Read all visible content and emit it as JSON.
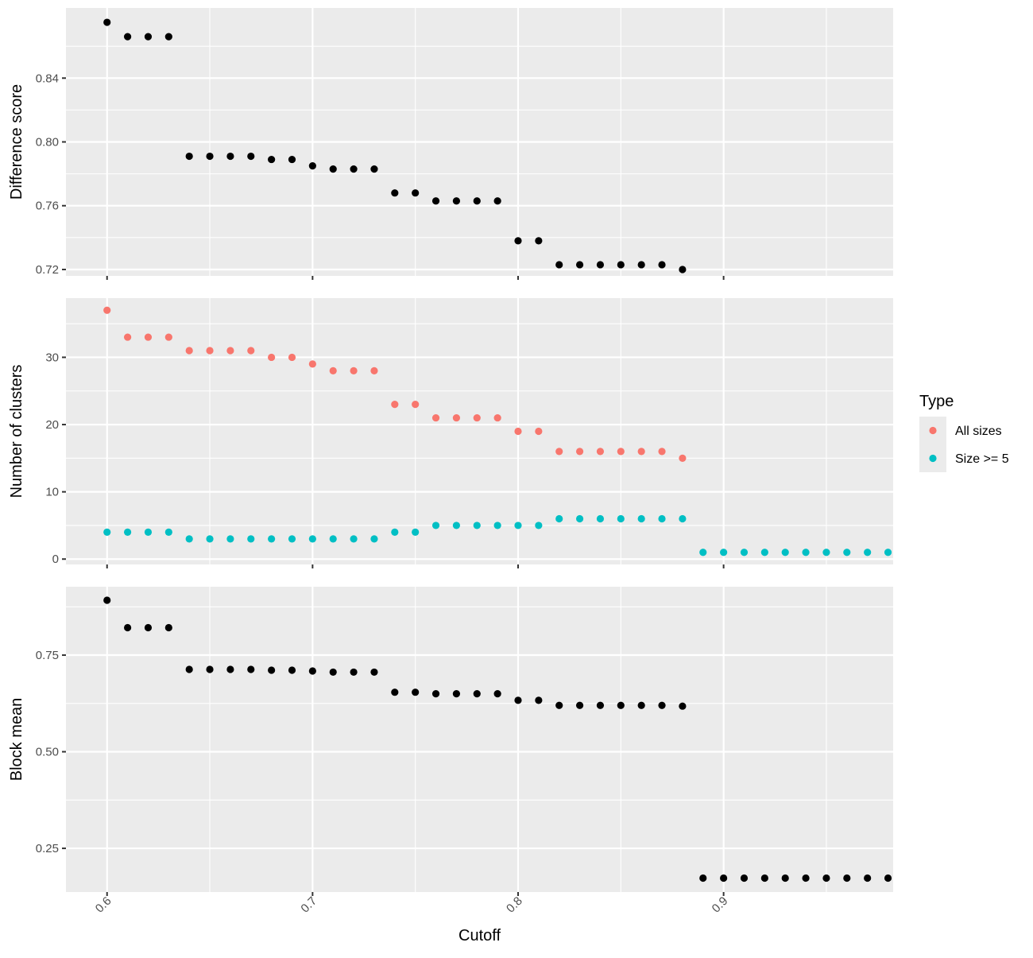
{
  "chart_data": [
    {
      "type": "scatter",
      "ylabel": "Difference score",
      "xlabel": "",
      "xlim": [
        0.58,
        0.9825
      ],
      "ylim": [
        0.716,
        0.884
      ],
      "y_ticks": [
        0.72,
        0.76,
        0.8,
        0.84
      ],
      "y_tick_labels": [
        "0.72",
        "0.76",
        "0.80",
        "0.84"
      ],
      "grid": true,
      "series": [
        {
          "color": "#000000",
          "x": [
            0.6,
            0.61,
            0.62,
            0.63,
            0.64,
            0.65,
            0.66,
            0.67,
            0.68,
            0.69,
            0.7,
            0.71,
            0.72,
            0.73,
            0.74,
            0.75,
            0.76,
            0.77,
            0.78,
            0.79,
            0.8,
            0.81,
            0.82,
            0.83,
            0.84,
            0.85,
            0.86,
            0.87,
            0.88
          ],
          "y": [
            0.875,
            0.866,
            0.866,
            0.866,
            0.791,
            0.791,
            0.791,
            0.791,
            0.789,
            0.789,
            0.785,
            0.783,
            0.783,
            0.783,
            0.768,
            0.768,
            0.763,
            0.763,
            0.763,
            0.763,
            0.738,
            0.738,
            0.723,
            0.723,
            0.723,
            0.723,
            0.723,
            0.723,
            0.72
          ]
        }
      ]
    },
    {
      "type": "scatter",
      "ylabel": "Number of clusters",
      "xlabel": "",
      "xlim": [
        0.58,
        0.9825
      ],
      "ylim": [
        -0.8,
        38.8
      ],
      "y_ticks": [
        0,
        10,
        20,
        30
      ],
      "y_tick_labels": [
        "0",
        "10",
        "20",
        "30"
      ],
      "grid": true,
      "legend": {
        "title": "Type",
        "placement": "right"
      },
      "series": [
        {
          "name": "All sizes",
          "color": "#f8766d",
          "x": [
            0.6,
            0.61,
            0.62,
            0.63,
            0.64,
            0.65,
            0.66,
            0.67,
            0.68,
            0.69,
            0.7,
            0.71,
            0.72,
            0.73,
            0.74,
            0.75,
            0.76,
            0.77,
            0.78,
            0.79,
            0.8,
            0.81,
            0.82,
            0.83,
            0.84,
            0.85,
            0.86,
            0.87,
            0.88
          ],
          "y": [
            37,
            33,
            33,
            33,
            31,
            31,
            31,
            31,
            30,
            30,
            29,
            28,
            28,
            28,
            23,
            23,
            21,
            21,
            21,
            21,
            19,
            19,
            16,
            16,
            16,
            16,
            16,
            16,
            15
          ]
        },
        {
          "name": "Size >= 5",
          "color": "#00bfc4",
          "x": [
            0.6,
            0.61,
            0.62,
            0.63,
            0.64,
            0.65,
            0.66,
            0.67,
            0.68,
            0.69,
            0.7,
            0.71,
            0.72,
            0.73,
            0.74,
            0.75,
            0.76,
            0.77,
            0.78,
            0.79,
            0.8,
            0.81,
            0.82,
            0.83,
            0.84,
            0.85,
            0.86,
            0.87,
            0.88,
            0.89,
            0.9,
            0.91,
            0.92,
            0.93,
            0.94,
            0.95,
            0.96,
            0.97,
            0.98
          ],
          "y": [
            4,
            4,
            4,
            4,
            3,
            3,
            3,
            3,
            3,
            3,
            3,
            3,
            3,
            3,
            4,
            4,
            5,
            5,
            5,
            5,
            5,
            5,
            6,
            6,
            6,
            6,
            6,
            6,
            6,
            1,
            1,
            1,
            1,
            1,
            1,
            1,
            1,
            1,
            1
          ]
        }
      ]
    },
    {
      "type": "scatter",
      "ylabel": "Block mean",
      "xlabel": "Cutoff",
      "xlim": [
        0.58,
        0.9825
      ],
      "ylim": [
        0.137,
        0.927
      ],
      "x_ticks": [
        0.6,
        0.7,
        0.8,
        0.9
      ],
      "x_tick_labels": [
        "0.6",
        "0.7",
        "0.8",
        "0.9"
      ],
      "y_ticks": [
        0.25,
        0.5,
        0.75
      ],
      "y_tick_labels": [
        "0.25",
        "0.50",
        "0.75"
      ],
      "grid": true,
      "series": [
        {
          "color": "#000000",
          "x": [
            0.6,
            0.61,
            0.62,
            0.63,
            0.64,
            0.65,
            0.66,
            0.67,
            0.68,
            0.69,
            0.7,
            0.71,
            0.72,
            0.73,
            0.74,
            0.75,
            0.76,
            0.77,
            0.78,
            0.79,
            0.8,
            0.81,
            0.82,
            0.83,
            0.84,
            0.85,
            0.86,
            0.87,
            0.88,
            0.89,
            0.9,
            0.91,
            0.92,
            0.93,
            0.94,
            0.95,
            0.96,
            0.97,
            0.98
          ],
          "y": [
            0.892,
            0.821,
            0.821,
            0.821,
            0.713,
            0.713,
            0.713,
            0.713,
            0.711,
            0.711,
            0.709,
            0.706,
            0.706,
            0.706,
            0.654,
            0.654,
            0.65,
            0.65,
            0.65,
            0.65,
            0.633,
            0.633,
            0.62,
            0.62,
            0.62,
            0.62,
            0.62,
            0.62,
            0.618,
            0.173,
            0.173,
            0.173,
            0.173,
            0.173,
            0.173,
            0.173,
            0.173,
            0.173,
            0.173
          ]
        }
      ]
    }
  ]
}
